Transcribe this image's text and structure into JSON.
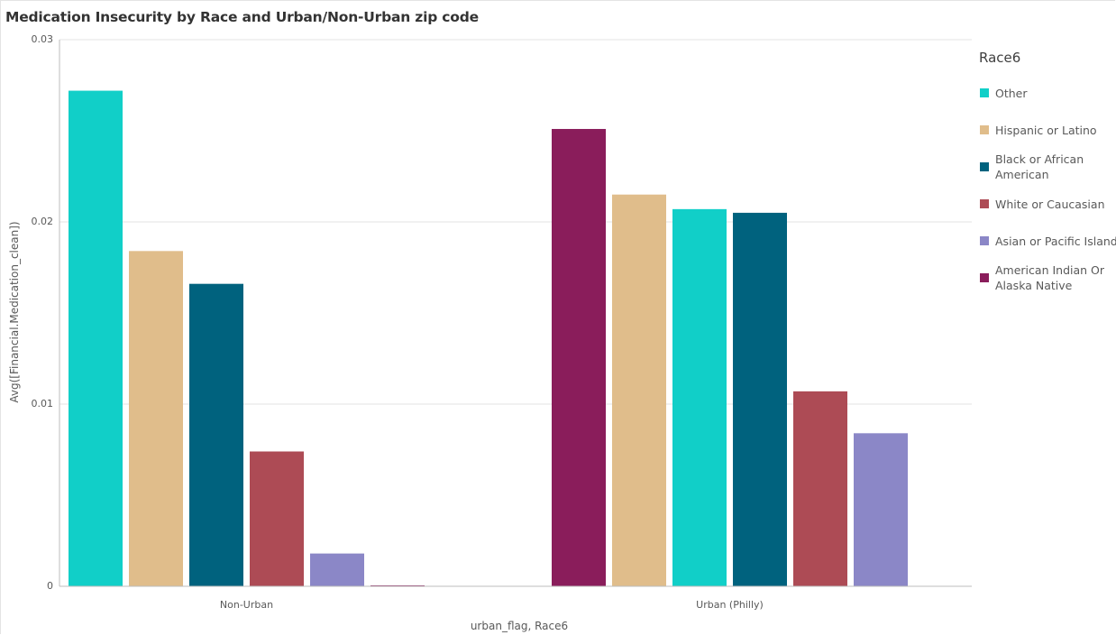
{
  "chart_data": {
    "type": "bar",
    "title": "Medication Insecurity by Race and Urban/Non-Urban zip code",
    "xlabel": "urban_flag, Race6",
    "ylabel": "Avg([Financial.Medication_clean])",
    "ylim": [
      0,
      0.03
    ],
    "y_ticks": [
      "0",
      "0.01",
      "0.02",
      "0.03"
    ],
    "grid": true,
    "legend_position": "right",
    "legend_title": "Race6",
    "legend": [
      {
        "label": "Other",
        "color": "#11cfc8"
      },
      {
        "label": "Hispanic or Latino",
        "color": "#e0bd8b"
      },
      {
        "label": "Black or African American",
        "color": "#00627e"
      },
      {
        "label": "White or Caucasian",
        "color": "#ad4b55"
      },
      {
        "label": "Asian or Pacific Islander",
        "color": "#8b87c7"
      },
      {
        "label": "American Indian Or Alaska Native",
        "color": "#8a1d5b"
      }
    ],
    "groups": [
      {
        "category": "Non-Urban",
        "bars": [
          {
            "race": "Other",
            "value": 0.0272
          },
          {
            "race": "Hispanic or Latino",
            "value": 0.0184
          },
          {
            "race": "Black or African American",
            "value": 0.0166
          },
          {
            "race": "White or Caucasian",
            "value": 0.0074
          },
          {
            "race": "Asian or Pacific Islander",
            "value": 0.0018
          },
          {
            "race": "American Indian Or Alaska Native",
            "value": 0.0
          }
        ]
      },
      {
        "category": "Urban (Philly)",
        "bars": [
          {
            "race": "American Indian Or Alaska Native",
            "value": 0.0251
          },
          {
            "race": "Hispanic or Latino",
            "value": 0.0215
          },
          {
            "race": "Other",
            "value": 0.0207
          },
          {
            "race": "Black or African American",
            "value": 0.0205
          },
          {
            "race": "White or Caucasian",
            "value": 0.0107
          },
          {
            "race": "Asian or Pacific Islander",
            "value": 0.0084
          }
        ]
      }
    ]
  }
}
